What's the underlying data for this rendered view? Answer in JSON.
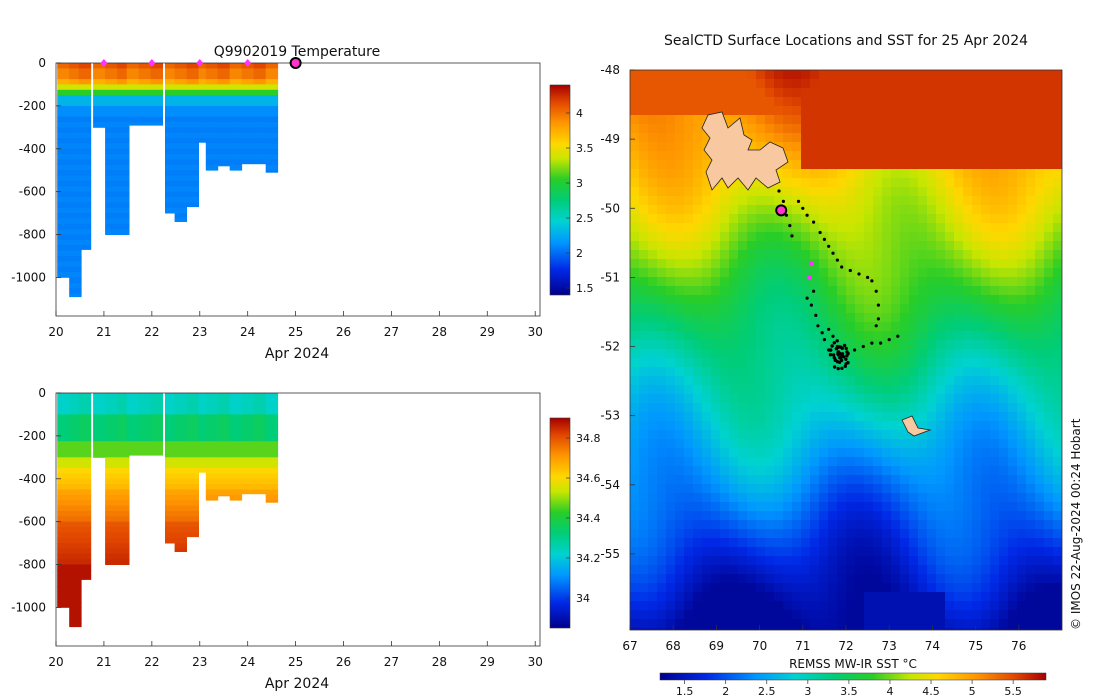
{
  "chart_data": [
    {
      "type": "heatmap",
      "title": "Q9902019  Temperature",
      "xlabel": "Apr 2024",
      "ylabel": "",
      "x_ticks": [
        "20",
        "21",
        "22",
        "23",
        "24",
        "25",
        "26",
        "27",
        "28",
        "29",
        "30"
      ],
      "y_ticks": [
        "0",
        "-200",
        "-400",
        "-600",
        "-800",
        "-1000"
      ],
      "xlim": [
        20,
        30.1
      ],
      "ylim": [
        -1180,
        0
      ],
      "colorbar": {
        "min": 1.4,
        "max": 4.4,
        "ticks": [
          "1.5",
          "2",
          "2.5",
          "3",
          "3.5",
          "4"
        ]
      },
      "profile_days": [
        20.15,
        20.4,
        20.6,
        20.9,
        21.15,
        21.4,
        21.6,
        21.85,
        22.1,
        22.4,
        22.6,
        22.85,
        23.1,
        23.25,
        23.5,
        23.75,
        24.0,
        24.25,
        24.5
      ],
      "profile_max_depth": [
        1000,
        1090,
        870,
        300,
        800,
        800,
        290,
        290,
        290,
        700,
        740,
        670,
        370,
        500,
        480,
        500,
        470,
        470,
        510
      ],
      "markers": [
        21,
        22,
        23,
        24
      ],
      "current_day": 25,
      "section": "temperature"
    },
    {
      "type": "heatmap",
      "title": "",
      "xlabel": "Apr 2024",
      "ylabel": "",
      "x_ticks": [
        "20",
        "21",
        "22",
        "23",
        "24",
        "25",
        "26",
        "27",
        "28",
        "29",
        "30"
      ],
      "y_ticks": [
        "0",
        "-200",
        "-400",
        "-600",
        "-800",
        "-1000"
      ],
      "xlim": [
        20,
        30.1
      ],
      "ylim": [
        -1180,
        0
      ],
      "colorbar": {
        "min": 33.85,
        "max": 34.9,
        "ticks": [
          "34",
          "34.2",
          "34.4",
          "34.6",
          "34.8"
        ]
      },
      "profile_days": [
        20.15,
        20.4,
        20.6,
        20.9,
        21.15,
        21.4,
        21.6,
        21.85,
        22.1,
        22.4,
        22.6,
        22.85,
        23.1,
        23.25,
        23.5,
        23.75,
        24.0,
        24.25,
        24.5
      ],
      "profile_max_depth": [
        1000,
        1090,
        870,
        300,
        800,
        800,
        290,
        290,
        290,
        700,
        740,
        670,
        370,
        500,
        480,
        500,
        470,
        470,
        510
      ],
      "section": "salinity"
    },
    {
      "type": "map",
      "title": "SealCTD Surface Locations and SST for 25 Apr 2024",
      "x_ticks": [
        "67",
        "68",
        "69",
        "70",
        "71",
        "72",
        "73",
        "74",
        "75",
        "76"
      ],
      "y_ticks": [
        "-48",
        "-49",
        "-50",
        "-51",
        "-52",
        "-53",
        "-54",
        "-55"
      ],
      "lon_range": [
        67,
        77
      ],
      "lat_range": [
        -56.1,
        -48
      ],
      "colorbar": {
        "label": "REMSS MW-IR SST °C",
        "min": 1.2,
        "max": 5.9,
        "ticks": [
          "1.5",
          "2",
          "2.5",
          "3",
          "3.5",
          "4",
          "4.5",
          "5",
          "5.5"
        ]
      },
      "current_position": {
        "lon": 70.5,
        "lat": -50.03
      },
      "recent_positions": [
        {
          "lon": 71.15,
          "lat": -51.0
        },
        {
          "lon": 71.2,
          "lat": -50.8
        }
      ],
      "track_points": [
        [
          70.45,
          -49.75
        ],
        [
          70.55,
          -49.9
        ],
        [
          70.62,
          -50.1
        ],
        [
          70.7,
          -50.25
        ],
        [
          70.9,
          -49.9
        ],
        [
          71.0,
          -50.0
        ],
        [
          71.1,
          -50.1
        ],
        [
          71.25,
          -50.2
        ],
        [
          71.4,
          -50.35
        ],
        [
          71.5,
          -50.45
        ],
        [
          71.6,
          -50.55
        ],
        [
          71.7,
          -50.65
        ],
        [
          71.8,
          -50.75
        ],
        [
          71.9,
          -50.85
        ],
        [
          72.1,
          -50.9
        ],
        [
          72.3,
          -50.95
        ],
        [
          72.5,
          -51.0
        ],
        [
          72.6,
          -51.05
        ],
        [
          72.7,
          -51.2
        ],
        [
          72.75,
          -51.4
        ],
        [
          72.75,
          -51.6
        ],
        [
          72.7,
          -51.7
        ],
        [
          71.1,
          -51.3
        ],
        [
          71.2,
          -51.4
        ],
        [
          71.3,
          -51.55
        ],
        [
          71.35,
          -51.7
        ],
        [
          71.45,
          -51.8
        ],
        [
          71.6,
          -51.75
        ],
        [
          71.7,
          -51.85
        ],
        [
          71.8,
          -52.0
        ],
        [
          71.85,
          -52.1
        ],
        [
          71.9,
          -52.2
        ],
        [
          71.95,
          -52.15
        ],
        [
          72.05,
          -52.1
        ],
        [
          72.2,
          -52.05
        ],
        [
          72.4,
          -52.0
        ],
        [
          72.6,
          -51.95
        ],
        [
          72.8,
          -51.95
        ],
        [
          73.0,
          -51.9
        ],
        [
          73.2,
          -51.85
        ],
        [
          70.75,
          -50.4
        ],
        [
          71.25,
          -51.2
        ],
        [
          71.5,
          -51.9
        ],
        [
          71.6,
          -52.05
        ],
        [
          72.0,
          -52.25
        ],
        [
          71.75,
          -52.2
        ]
      ],
      "section": "map"
    }
  ],
  "footer": {
    "colorbar_label": "REMSS MW-IR SST °C",
    "credit": "© IMOS 22-Aug-2024 00:24 Hobart"
  }
}
